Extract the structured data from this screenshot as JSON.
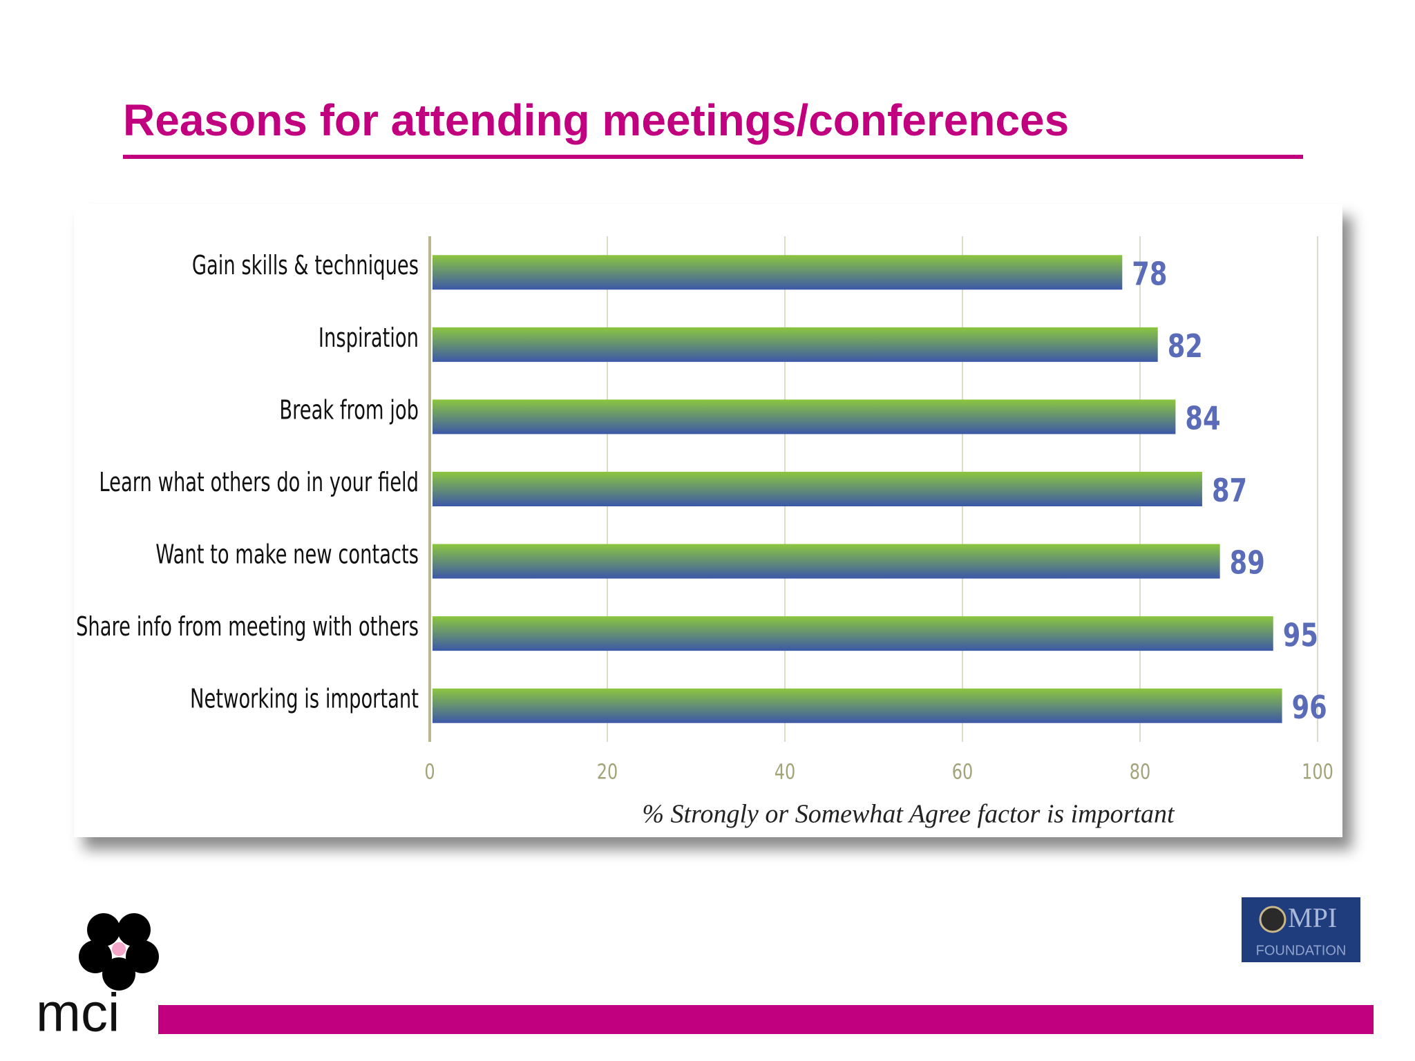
{
  "chart_data": {
    "type": "bar",
    "orientation": "horizontal",
    "title": "Reasons for attending meetings/conferences",
    "categories": [
      "Gain skills & techniques",
      "Inspiration",
      "Break from job",
      "Learn what others do in your field",
      "Want to make new contacts",
      "Share info from meeting with others",
      "Networking is important"
    ],
    "values": [
      78,
      82,
      84,
      87,
      89,
      95,
      96
    ],
    "bar_colors": [
      "#8cc63f",
      "#3c58a8"
    ],
    "value_label_color": "#5a6cb8",
    "xlabel": "% Strongly or Somewhat Agree factor is important",
    "xlim": [
      0,
      100
    ],
    "xticks": [
      0,
      20,
      40,
      60,
      80,
      100
    ],
    "grid": true
  },
  "logos": {
    "left": "mci",
    "right_top": "MPI",
    "right_bottom": "FOUNDATION"
  }
}
